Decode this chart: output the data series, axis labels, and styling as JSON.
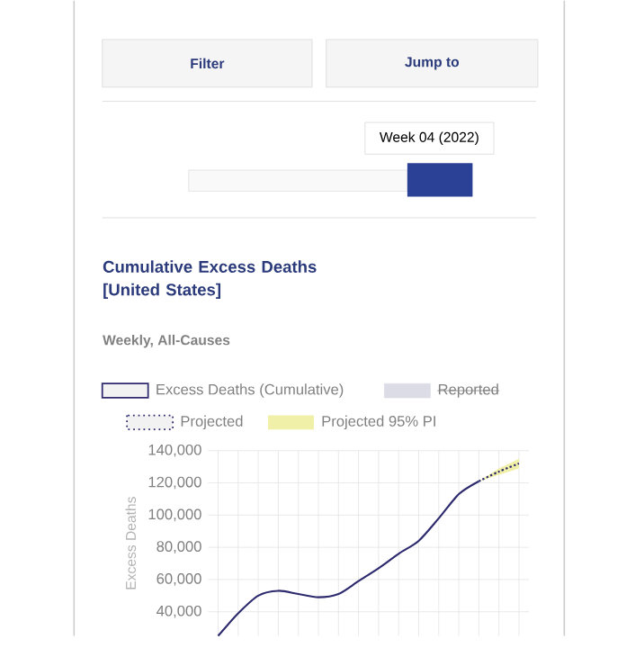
{
  "chart_data": {
    "type": "line",
    "title": "Cumulative Excess Deaths [United States]",
    "subtitle": "Weekly, All-Causes",
    "ylabel": "Excess Deaths",
    "annotations": [
      "Filter",
      "Jump to",
      "Week 04 (2022)"
    ],
    "categories": [
      null,
      null,
      null,
      null,
      null,
      null,
      null,
      null,
      null,
      null,
      null,
      null,
      null,
      null,
      null,
      null
    ],
    "series": [
      {
        "name": "Excess Deaths (Cumulative)",
        "color": "#2d2a6e",
        "line_style": "solid",
        "values": [
          25000,
          39000,
          50000,
          53000,
          51000,
          49000,
          51000,
          59000,
          67000,
          76000,
          84000,
          98000,
          113000,
          121000,
          null,
          null
        ]
      },
      {
        "name": "Reported",
        "color": "#dcdce6",
        "line_style": "solid",
        "values": [
          null,
          null,
          null,
          null,
          null,
          null,
          null,
          null,
          null,
          null,
          null,
          null,
          null,
          null,
          null,
          null
        ]
      },
      {
        "name": "Projected",
        "color": "#2d2a6e",
        "line_style": "dotted",
        "values": [
          null,
          null,
          null,
          null,
          null,
          null,
          null,
          null,
          null,
          null,
          null,
          null,
          null,
          121000,
          127000,
          132000
        ],
        "lower": [
          null,
          null,
          null,
          null,
          null,
          null,
          null,
          null,
          null,
          null,
          null,
          null,
          null,
          121000,
          125000,
          129000
        ],
        "upper": [
          null,
          null,
          null,
          null,
          null,
          null,
          null,
          null,
          null,
          null,
          null,
          null,
          null,
          121000,
          129000,
          135000
        ]
      },
      {
        "name": "Projected 95% PI",
        "type": "area",
        "color": "#f0f0a8",
        "values": [
          null,
          null,
          null,
          null,
          null,
          null,
          null,
          null,
          null,
          null,
          null,
          null,
          null,
          null,
          null,
          null
        ]
      }
    ],
    "ylim": [
      25000,
      140000
    ],
    "yticks": [
      {
        "value": 40000,
        "label": "40,000"
      },
      {
        "value": 60000,
        "label": "60,000"
      },
      {
        "value": 80000,
        "label": "80,000"
      },
      {
        "value": 100000,
        "label": "100,000"
      },
      {
        "value": 120000,
        "label": "120,000"
      },
      {
        "value": 140000,
        "label": "140,000"
      }
    ],
    "grid": true,
    "legend": "top",
    "marker": "none"
  }
}
